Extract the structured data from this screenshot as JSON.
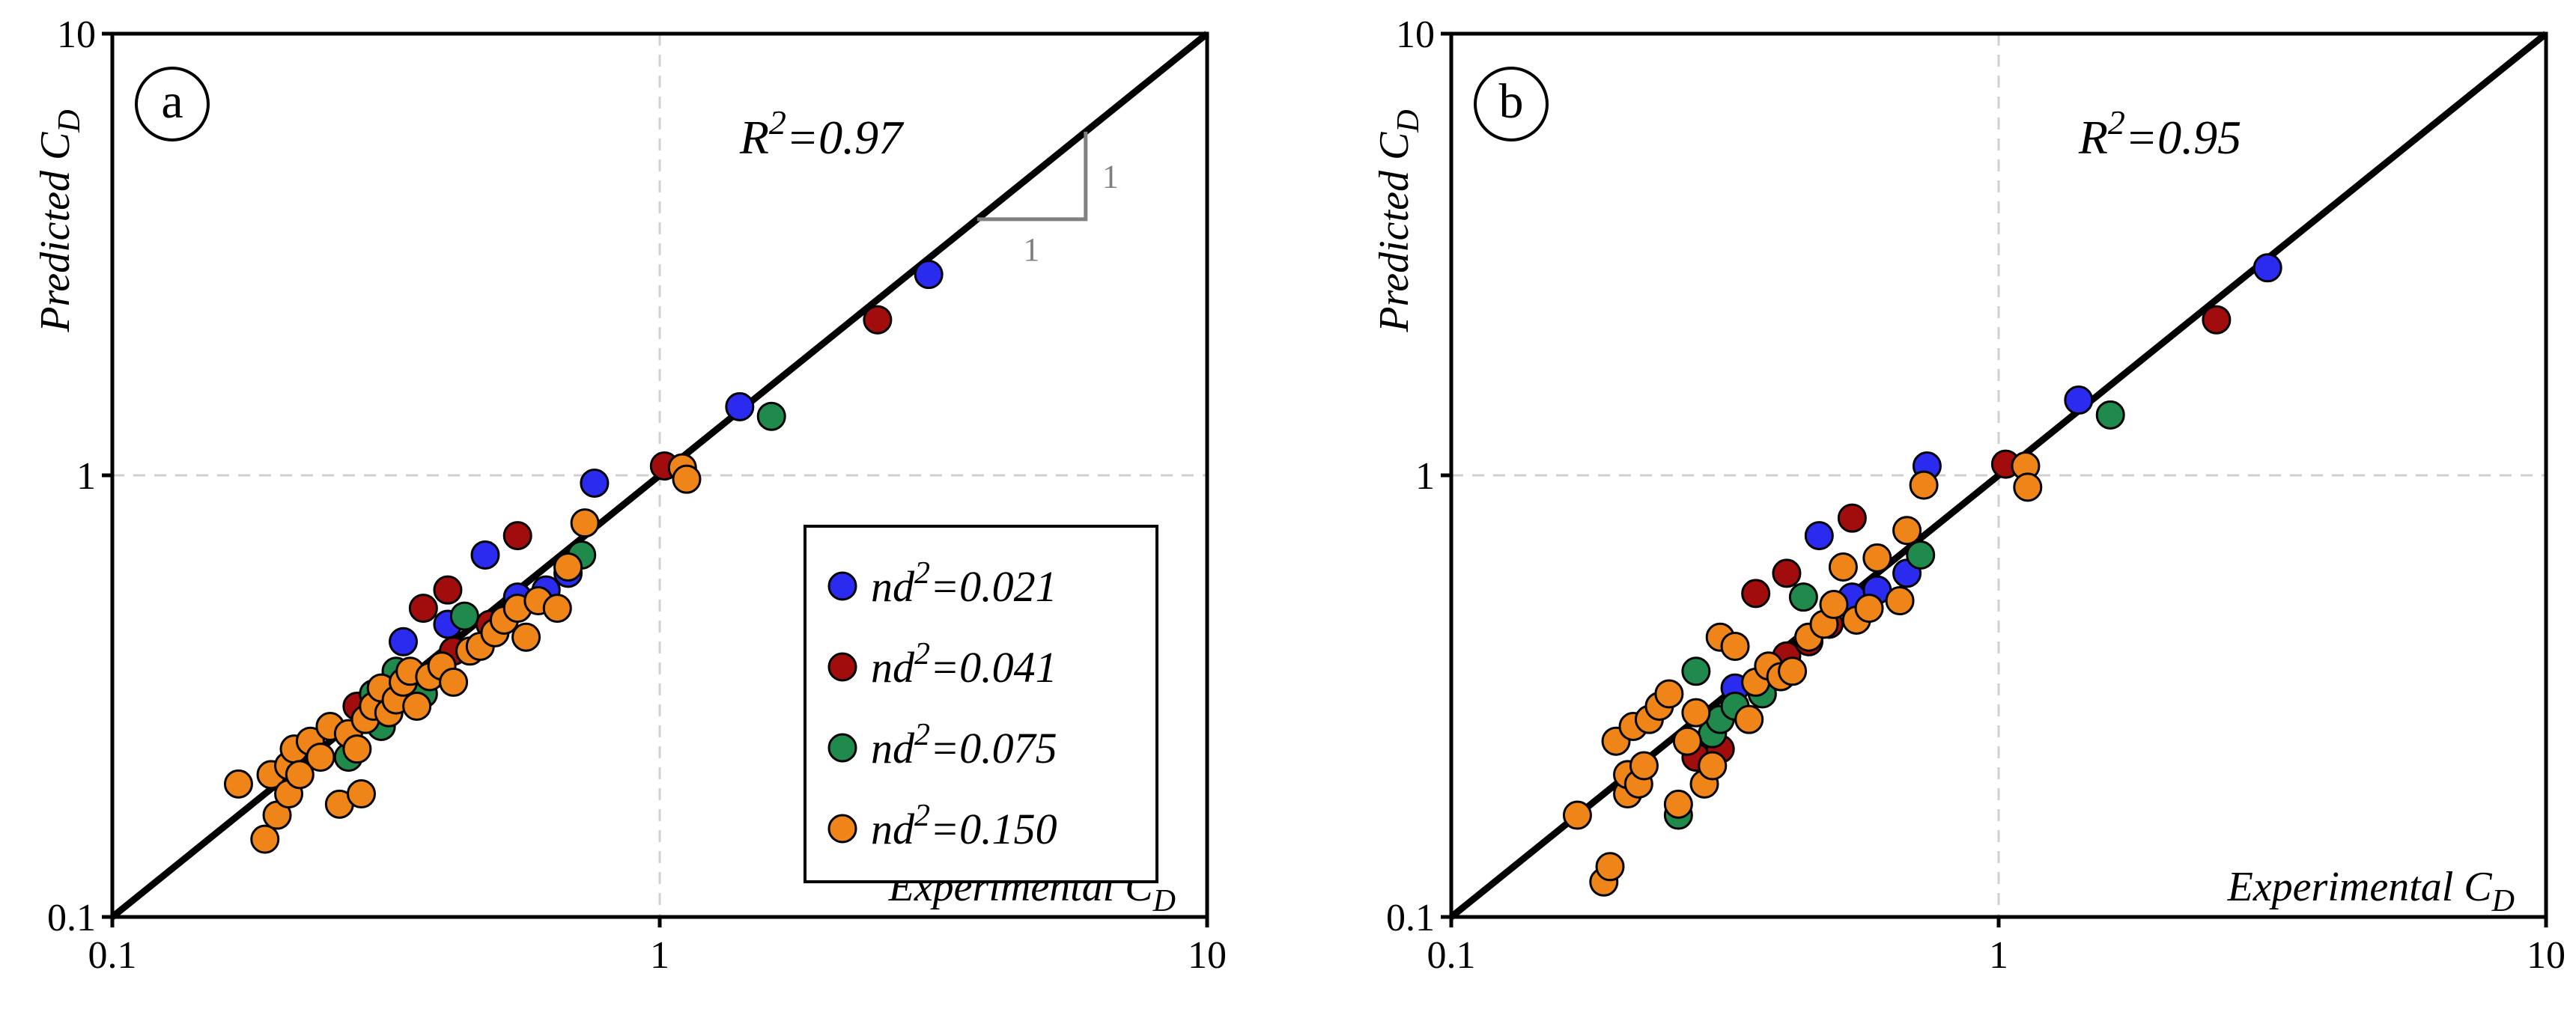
{
  "colors": {
    "nd2_0.021": "#2b2bf0",
    "nd2_0.041": "#a10d0d",
    "nd2_0.075": "#1f8a4c",
    "nd2_0.150": "#ef8519",
    "axis": "#000000",
    "grid": "#d0d0d0",
    "slope": "#808080"
  },
  "chart_data": [
    {
      "type": "scatter",
      "panel_label": "a",
      "scale": "log",
      "xlim": [
        0.1,
        10
      ],
      "ylim": [
        0.1,
        10
      ],
      "xticks": [
        "0.1",
        "1",
        "10"
      ],
      "yticks": [
        "0.1",
        "1",
        "10"
      ],
      "xlabel": {
        "text": "Experimental C",
        "sub": "D"
      },
      "ylabel": {
        "text": "Predicted C",
        "sub": "D"
      },
      "r2": {
        "base": "R",
        "sup": "2",
        "rest": "=0.97"
      },
      "reference_line": "1:1",
      "slope_triangle": {
        "run": "1",
        "rise": "1"
      },
      "legend": [
        {
          "key": "0.021",
          "base": "nd",
          "sup": "2",
          "rest": "=0.021"
        },
        {
          "key": "0.041",
          "base": "nd",
          "sup": "2",
          "rest": "=0.041"
        },
        {
          "key": "0.075",
          "base": "nd",
          "sup": "2",
          "rest": "=0.075"
        },
        {
          "key": "0.150",
          "base": "nd",
          "sup": "2",
          "rest": "=0.150"
        }
      ],
      "series": [
        {
          "name": "nd2=0.021",
          "key": "0.021",
          "points": [
            [
              0.34,
              0.42
            ],
            [
              0.41,
              0.46
            ],
            [
              0.48,
              0.66
            ],
            [
              0.55,
              0.53
            ],
            [
              0.62,
              0.55
            ],
            [
              0.68,
              0.6
            ],
            [
              0.76,
              0.96
            ],
            [
              1.4,
              1.43
            ],
            [
              3.1,
              2.85
            ]
          ]
        },
        {
          "name": "nd2=0.041",
          "key": "0.041",
          "points": [
            [
              0.28,
              0.3
            ],
            [
              0.37,
              0.5
            ],
            [
              0.41,
              0.55
            ],
            [
              0.42,
              0.4
            ],
            [
              0.49,
              0.46
            ],
            [
              0.55,
              0.73
            ],
            [
              1.02,
              1.05
            ],
            [
              2.5,
              2.25
            ]
          ]
        },
        {
          "name": "nd2=0.075",
          "key": "0.075",
          "points": [
            [
              0.27,
              0.23
            ],
            [
              0.3,
              0.32
            ],
            [
              0.31,
              0.27
            ],
            [
              0.33,
              0.36
            ],
            [
              0.37,
              0.32
            ],
            [
              0.44,
              0.48
            ],
            [
              0.72,
              0.66
            ],
            [
              1.6,
              1.36
            ]
          ]
        },
        {
          "name": "nd2=0.150",
          "key": "0.150",
          "points": [
            [
              0.17,
              0.2
            ],
            [
              0.19,
              0.15
            ],
            [
              0.195,
              0.21
            ],
            [
              0.2,
              0.17
            ],
            [
              0.21,
              0.19
            ],
            [
              0.21,
              0.22
            ],
            [
              0.215,
              0.24
            ],
            [
              0.22,
              0.21
            ],
            [
              0.23,
              0.25
            ],
            [
              0.24,
              0.23
            ],
            [
              0.25,
              0.27
            ],
            [
              0.26,
              0.18
            ],
            [
              0.27,
              0.26
            ],
            [
              0.28,
              0.24
            ],
            [
              0.285,
              0.19
            ],
            [
              0.29,
              0.28
            ],
            [
              0.3,
              0.3
            ],
            [
              0.31,
              0.33
            ],
            [
              0.32,
              0.29
            ],
            [
              0.33,
              0.31
            ],
            [
              0.34,
              0.34
            ],
            [
              0.35,
              0.36
            ],
            [
              0.36,
              0.3
            ],
            [
              0.38,
              0.35
            ],
            [
              0.4,
              0.37
            ],
            [
              0.42,
              0.34
            ],
            [
              0.45,
              0.4
            ],
            [
              0.47,
              0.41
            ],
            [
              0.5,
              0.44
            ],
            [
              0.52,
              0.47
            ],
            [
              0.55,
              0.5
            ],
            [
              0.57,
              0.43
            ],
            [
              0.6,
              0.52
            ],
            [
              0.65,
              0.5
            ],
            [
              0.68,
              0.62
            ],
            [
              0.73,
              0.78
            ],
            [
              1.1,
              1.04
            ],
            [
              1.12,
              0.98
            ]
          ]
        }
      ]
    },
    {
      "type": "scatter",
      "panel_label": "b",
      "scale": "log",
      "xlim": [
        0.1,
        10
      ],
      "ylim": [
        0.1,
        10
      ],
      "xticks": [
        "0.1",
        "1",
        "10"
      ],
      "yticks": [
        "0.1",
        "1",
        "10"
      ],
      "xlabel": {
        "text": "Experimental C",
        "sub": "D"
      },
      "ylabel": {
        "text": "Predicted C",
        "sub": "D"
      },
      "r2": {
        "base": "R",
        "sup": "2",
        "rest": "=0.95"
      },
      "reference_line": "1:1",
      "series": [
        {
          "name": "nd2=0.021",
          "key": "0.021",
          "points": [
            [
              0.33,
              0.33
            ],
            [
              0.4,
              0.35
            ],
            [
              0.47,
              0.73
            ],
            [
              0.54,
              0.53
            ],
            [
              0.6,
              0.55
            ],
            [
              0.68,
              0.6
            ],
            [
              0.74,
              1.05
            ],
            [
              1.4,
              1.48
            ],
            [
              3.1,
              2.95
            ]
          ]
        },
        {
          "name": "nd2=0.041",
          "key": "0.041",
          "points": [
            [
              0.28,
              0.23
            ],
            [
              0.31,
              0.24
            ],
            [
              0.36,
              0.54
            ],
            [
              0.41,
              0.39
            ],
            [
              0.41,
              0.6
            ],
            [
              0.45,
              0.42
            ],
            [
              0.49,
              0.46
            ],
            [
              0.54,
              0.8
            ],
            [
              1.03,
              1.06
            ],
            [
              2.5,
              2.25
            ]
          ]
        },
        {
          "name": "nd2=0.075",
          "key": "0.075",
          "points": [
            [
              0.26,
              0.17
            ],
            [
              0.28,
              0.36
            ],
            [
              0.3,
              0.26
            ],
            [
              0.31,
              0.28
            ],
            [
              0.33,
              0.3
            ],
            [
              0.37,
              0.32
            ],
            [
              0.44,
              0.53
            ],
            [
              0.72,
              0.66
            ],
            [
              1.6,
              1.37
            ]
          ]
        },
        {
          "name": "nd2=0.150",
          "key": "0.150",
          "points": [
            [
              0.17,
              0.17
            ],
            [
              0.19,
              0.12
            ],
            [
              0.195,
              0.13
            ],
            [
              0.2,
              0.25
            ],
            [
              0.21,
              0.19
            ],
            [
              0.21,
              0.21
            ],
            [
              0.215,
              0.27
            ],
            [
              0.22,
              0.2
            ],
            [
              0.225,
              0.22
            ],
            [
              0.23,
              0.28
            ],
            [
              0.24,
              0.3
            ],
            [
              0.25,
              0.32
            ],
            [
              0.26,
              0.18
            ],
            [
              0.27,
              0.25
            ],
            [
              0.28,
              0.29
            ],
            [
              0.29,
              0.2
            ],
            [
              0.3,
              0.22
            ],
            [
              0.31,
              0.43
            ],
            [
              0.33,
              0.41
            ],
            [
              0.35,
              0.28
            ],
            [
              0.36,
              0.34
            ],
            [
              0.38,
              0.37
            ],
            [
              0.4,
              0.35
            ],
            [
              0.42,
              0.36
            ],
            [
              0.45,
              0.43
            ],
            [
              0.48,
              0.46
            ],
            [
              0.5,
              0.51
            ],
            [
              0.52,
              0.62
            ],
            [
              0.55,
              0.47
            ],
            [
              0.58,
              0.5
            ],
            [
              0.6,
              0.65
            ],
            [
              0.66,
              0.52
            ],
            [
              0.68,
              0.75
            ],
            [
              0.73,
              0.95
            ],
            [
              1.12,
              1.05
            ],
            [
              1.13,
              0.94
            ]
          ]
        }
      ]
    }
  ]
}
